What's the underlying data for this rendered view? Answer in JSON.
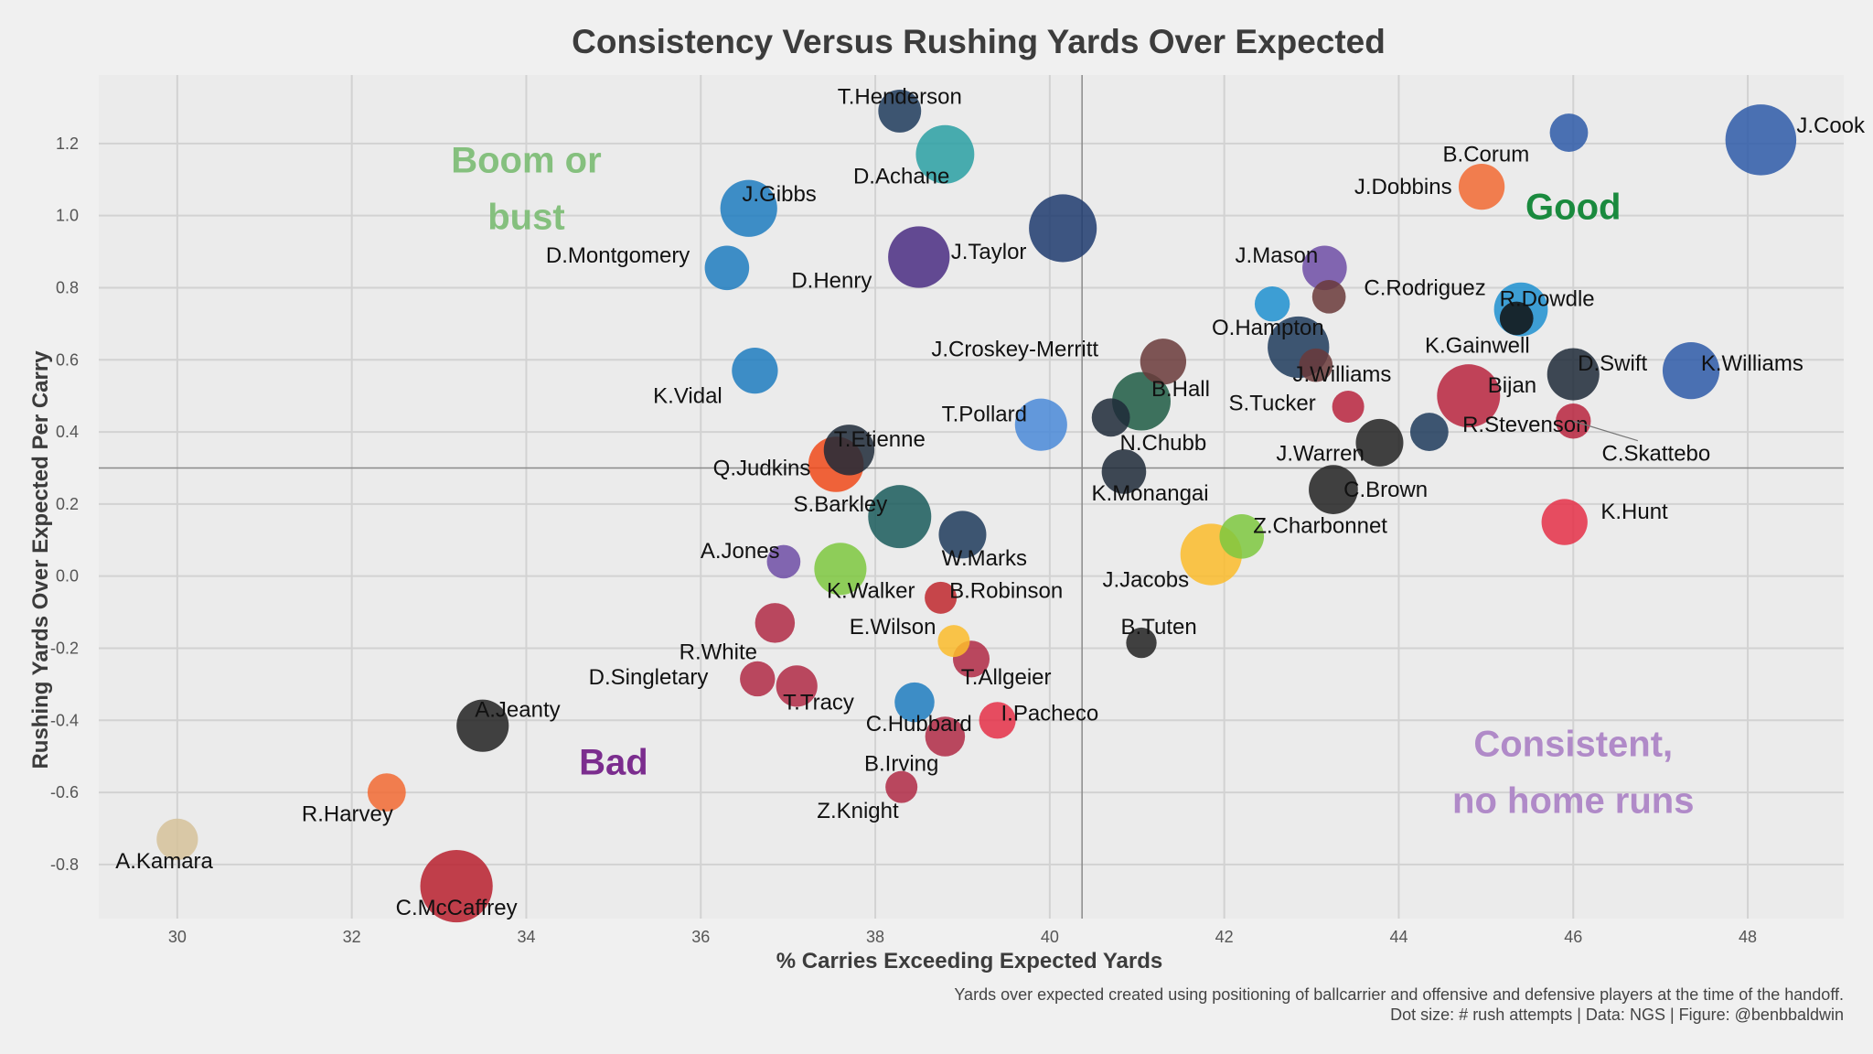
{
  "chart_data": {
    "type": "scatter",
    "title": "Consistency Versus Rushing Yards Over Expected",
    "xlabel": "% Carries Exceeding Expected Yards",
    "ylabel": "Rushing Yards Over Expected Per Carry",
    "xlim": [
      29.1,
      49.1
    ],
    "ylim": [
      -0.95,
      1.39
    ],
    "xticks": [
      30,
      32,
      34,
      36,
      38,
      40,
      42,
      44,
      46,
      48
    ],
    "yticks": [
      -0.8,
      -0.6,
      -0.4,
      -0.2,
      0.0,
      0.2,
      0.4,
      0.6,
      0.8,
      1.0,
      1.2
    ],
    "ytick_labels": [
      "-0.8",
      "-0.6",
      "-0.4",
      "-0.2",
      "0.0",
      "0.2",
      "0.4",
      "0.6",
      "0.8",
      "1.0",
      "1.2"
    ],
    "grid": true,
    "reference_lines": {
      "x": 40.37,
      "y": 0.3
    },
    "quadrant_labels": [
      {
        "lines": [
          "Boom or",
          "bust"
        ],
        "x": 34.0,
        "y": 1.12,
        "color": "#85c07e"
      },
      {
        "lines": [
          "Good"
        ],
        "x": 46.0,
        "y": 0.99,
        "color": "#1a8a3e"
      },
      {
        "lines": [
          "Bad"
        ],
        "x": 35.0,
        "y": -0.55,
        "color": "#7b2d8e"
      },
      {
        "lines": [
          "Consistent,",
          "no home runs"
        ],
        "x": 46.0,
        "y": -0.5,
        "color": "#b08ac8"
      }
    ],
    "points": [
      {
        "name": "J.Cook",
        "x": 48.15,
        "y": 1.21,
        "size": 1.75,
        "color": "#2e5aa8",
        "lx": 48.95,
        "ly": 1.25
      },
      {
        "name": "B.Corum",
        "x": 45.95,
        "y": 1.23,
        "size": 0.7,
        "color": "#2e5aa8",
        "lx": 45.0,
        "ly": 1.17
      },
      {
        "name": "J.Dobbins",
        "x": 44.95,
        "y": 1.08,
        "size": 0.95,
        "color": "#f26a32",
        "lx": 44.05,
        "ly": 1.08
      },
      {
        "name": "T.Henderson",
        "x": 38.28,
        "y": 1.29,
        "size": 0.85,
        "color": "#1f3b5c",
        "lx": 38.28,
        "ly": 1.33
      },
      {
        "name": "D.Achane",
        "x": 38.8,
        "y": 1.17,
        "size": 1.35,
        "color": "#2aa0a3",
        "lx": 38.3,
        "ly": 1.11
      },
      {
        "name": "J.Gibbs",
        "x": 36.55,
        "y": 1.02,
        "size": 1.3,
        "color": "#1e7cc0",
        "lx": 36.9,
        "ly": 1.06
      },
      {
        "name": "D.Montgomery",
        "x": 36.3,
        "y": 0.855,
        "size": 0.9,
        "color": "#1e7cc0",
        "lx": 35.05,
        "ly": 0.89
      },
      {
        "name": "D.Henry",
        "x": 38.5,
        "y": 0.885,
        "size": 1.45,
        "color": "#4a2d82",
        "lx": 37.5,
        "ly": 0.82
      },
      {
        "name": "J.Taylor",
        "x": 40.15,
        "y": 0.965,
        "size": 1.65,
        "color": "#1f3b6e",
        "lx": 39.3,
        "ly": 0.9
      },
      {
        "name": "J.Mason",
        "x": 43.15,
        "y": 0.855,
        "size": 0.9,
        "color": "#6f4ea6",
        "lx": 42.6,
        "ly": 0.89
      },
      {
        "name": "C.Rodriguez",
        "x": 43.2,
        "y": 0.775,
        "size": 0.55,
        "color": "#6a3a3a",
        "lx": 44.3,
        "ly": 0.8
      },
      {
        "name": "R.Dowdle",
        "x": 45.4,
        "y": 0.74,
        "size": 1.2,
        "color": "#1e90d0",
        "lx": 45.7,
        "ly": 0.77
      },
      {
        "name": "K.Gainwell",
        "x": 45.35,
        "y": 0.715,
        "size": 0.55,
        "color": "#111111",
        "lx": 44.9,
        "ly": 0.64
      },
      {
        "name": "",
        "x": 42.55,
        "y": 0.755,
        "size": 0.6,
        "color": "#1e90d0",
        "lx": 42.55,
        "ly": 0.755
      },
      {
        "name": "O.Hampton",
        "x": 42.85,
        "y": 0.635,
        "size": 1.45,
        "color": "#1f3b5c",
        "lx": 42.5,
        "ly": 0.69
      },
      {
        "name": "J.Croskey-Merritt",
        "x": 41.3,
        "y": 0.595,
        "size": 0.95,
        "color": "#6a3a3a",
        "lx": 39.6,
        "ly": 0.63
      },
      {
        "name": "J.Williams",
        "x": 43.05,
        "y": 0.585,
        "size": 0.55,
        "color": "#6a3a3a",
        "lx": 43.35,
        "ly": 0.56
      },
      {
        "name": "Bijan",
        "x": 44.8,
        "y": 0.5,
        "size": 1.5,
        "color": "#b8253e",
        "lx": 45.3,
        "ly": 0.53
      },
      {
        "name": "D.Swift",
        "x": 46.0,
        "y": 0.56,
        "size": 1.15,
        "color": "#1f2a38",
        "lx": 46.45,
        "ly": 0.59
      },
      {
        "name": "K.Williams",
        "x": 47.35,
        "y": 0.57,
        "size": 1.3,
        "color": "#2e5aa8",
        "lx": 48.05,
        "ly": 0.59
      },
      {
        "name": "K.Vidal",
        "x": 36.62,
        "y": 0.57,
        "size": 0.95,
        "color": "#1e7cc0",
        "lx": 35.85,
        "ly": 0.5
      },
      {
        "name": "B.Hall",
        "x": 41.05,
        "y": 0.485,
        "size": 1.35,
        "color": "#1e5c44",
        "lx": 41.5,
        "ly": 0.52
      },
      {
        "name": "T.Pollard",
        "x": 39.9,
        "y": 0.42,
        "size": 1.15,
        "color": "#4a8ad8",
        "lx": 39.25,
        "ly": 0.45
      },
      {
        "name": "N.Chubb",
        "x": 40.7,
        "y": 0.44,
        "size": 0.7,
        "color": "#1f2a38",
        "lx": 41.3,
        "ly": 0.37
      },
      {
        "name": "S.Tucker",
        "x": 43.42,
        "y": 0.47,
        "size": 0.5,
        "color": "#b8253e",
        "lx": 42.55,
        "ly": 0.48
      },
      {
        "name": "R.Stevenson",
        "x": 44.35,
        "y": 0.4,
        "size": 0.7,
        "color": "#1f3b5c",
        "lx": 45.45,
        "ly": 0.42
      },
      {
        "name": "C.Skattebo",
        "x": 46.0,
        "y": 0.43,
        "size": 0.6,
        "color": "#b8253e",
        "lx": 46.95,
        "ly": 0.34,
        "leader": true
      },
      {
        "name": "T.Etienne",
        "x": 37.7,
        "y": 0.35,
        "size": 1.1,
        "color": "#1f2a38",
        "lx": 38.05,
        "ly": 0.38
      },
      {
        "name": "Q.Judkins",
        "x": 37.55,
        "y": 0.31,
        "size": 1.25,
        "color": "#f04a1a",
        "lx": 36.7,
        "ly": 0.3
      },
      {
        "name": "J.Warren",
        "x": 43.78,
        "y": 0.37,
        "size": 1.0,
        "color": "#222222",
        "lx": 43.1,
        "ly": 0.34
      },
      {
        "name": "K.Monangai",
        "x": 40.85,
        "y": 0.29,
        "size": 0.9,
        "color": "#1f2a38",
        "lx": 41.15,
        "ly": 0.23
      },
      {
        "name": "C.Brown",
        "x": 43.25,
        "y": 0.24,
        "size": 1.05,
        "color": "#222222",
        "lx": 43.85,
        "ly": 0.24
      },
      {
        "name": "S.Barkley",
        "x": 38.28,
        "y": 0.165,
        "size": 1.5,
        "color": "#1a5c5c",
        "lx": 37.6,
        "ly": 0.2
      },
      {
        "name": "W.Marks",
        "x": 39.0,
        "y": 0.115,
        "size": 1.0,
        "color": "#1f3b5c",
        "lx": 39.25,
        "ly": 0.05
      },
      {
        "name": "K.Hunt",
        "x": 45.9,
        "y": 0.15,
        "size": 0.95,
        "color": "#e53048",
        "lx": 46.7,
        "ly": 0.18
      },
      {
        "name": "Z.Charbonnet",
        "x": 42.2,
        "y": 0.11,
        "size": 0.9,
        "color": "#7ec840",
        "lx": 43.1,
        "ly": 0.14
      },
      {
        "name": "J.Jacobs",
        "x": 41.85,
        "y": 0.06,
        "size": 1.45,
        "color": "#fbbc2c",
        "lx": 41.1,
        "ly": -0.01
      },
      {
        "name": "A.Jones",
        "x": 36.95,
        "y": 0.04,
        "size": 0.55,
        "color": "#6f4ea6",
        "lx": 36.45,
        "ly": 0.07
      },
      {
        "name": "K.Walker",
        "x": 37.6,
        "y": 0.02,
        "size": 1.15,
        "color": "#7ec840",
        "lx": 37.95,
        "ly": -0.04
      },
      {
        "name": "B.Robinson",
        "x": 38.75,
        "y": -0.06,
        "size": 0.5,
        "color": "#c0282e",
        "lx": 39.5,
        "ly": -0.04
      },
      {
        "name": "R.White",
        "x": 36.85,
        "y": -0.13,
        "size": 0.75,
        "color": "#b02a45",
        "lx": 36.2,
        "ly": -0.21
      },
      {
        "name": "E.Wilson",
        "x": 38.9,
        "y": -0.18,
        "size": 0.5,
        "color": "#fbbc2c",
        "lx": 38.2,
        "ly": -0.14
      },
      {
        "name": "B.Tuten",
        "x": 41.05,
        "y": -0.185,
        "size": 0.45,
        "color": "#222222",
        "lx": 41.25,
        "ly": -0.14
      },
      {
        "name": "T.Allgeier",
        "x": 39.1,
        "y": -0.23,
        "size": 0.65,
        "color": "#b02a45",
        "lx": 39.5,
        "ly": -0.28
      },
      {
        "name": "D.Singletary",
        "x": 36.65,
        "y": -0.285,
        "size": 0.6,
        "color": "#b02a45",
        "lx": 35.4,
        "ly": -0.28
      },
      {
        "name": "T.Tracy",
        "x": 37.1,
        "y": -0.305,
        "size": 0.8,
        "color": "#b02a45",
        "lx": 37.35,
        "ly": -0.35
      },
      {
        "name": "A.Jeanty",
        "x": 33.5,
        "y": -0.415,
        "size": 1.15,
        "color": "#222222",
        "lx": 33.9,
        "ly": -0.37
      },
      {
        "name": "C.Hubbard",
        "x": 38.45,
        "y": -0.35,
        "size": 0.75,
        "color": "#1e7cc0",
        "lx": 38.5,
        "ly": -0.41
      },
      {
        "name": "I.Pacheco",
        "x": 39.4,
        "y": -0.4,
        "size": 0.65,
        "color": "#e53048",
        "lx": 40.0,
        "ly": -0.38
      },
      {
        "name": "C.McCaffrey_mark",
        "x": 38.8,
        "y": -0.445,
        "size": 0.75,
        "color": "#b02a45",
        "lx": 38.8,
        "ly": -0.445
      },
      {
        "name": "B.Irving",
        "x": 38.3,
        "y": -0.585,
        "size": 0.5,
        "color": "#b02a45",
        "lx": 38.3,
        "ly": -0.52
      },
      {
        "name": "Z.Knight",
        "x": 38.3,
        "y": -0.585,
        "size": 0.0,
        "color": "#b02a45",
        "lx": 37.8,
        "ly": -0.65
      },
      {
        "name": "R.Harvey",
        "x": 32.4,
        "y": -0.6,
        "size": 0.7,
        "color": "#f26a32",
        "lx": 31.95,
        "ly": -0.66
      },
      {
        "name": "A.Kamara",
        "x": 30.0,
        "y": -0.73,
        "size": 0.8,
        "color": "#d6c29a",
        "lx": 29.85,
        "ly": -0.79
      },
      {
        "name": "C.McCaffrey",
        "x": 33.2,
        "y": -0.86,
        "size": 1.8,
        "color": "#b8202e",
        "lx": 33.2,
        "ly": -0.92
      }
    ],
    "caption": [
      "Yards over expected created using positioning of ballcarrier and offensive and defensive players at the time of the handoff.",
      "Dot size: # rush attempts | Data: NGS | Figure: @benbbaldwin"
    ]
  }
}
